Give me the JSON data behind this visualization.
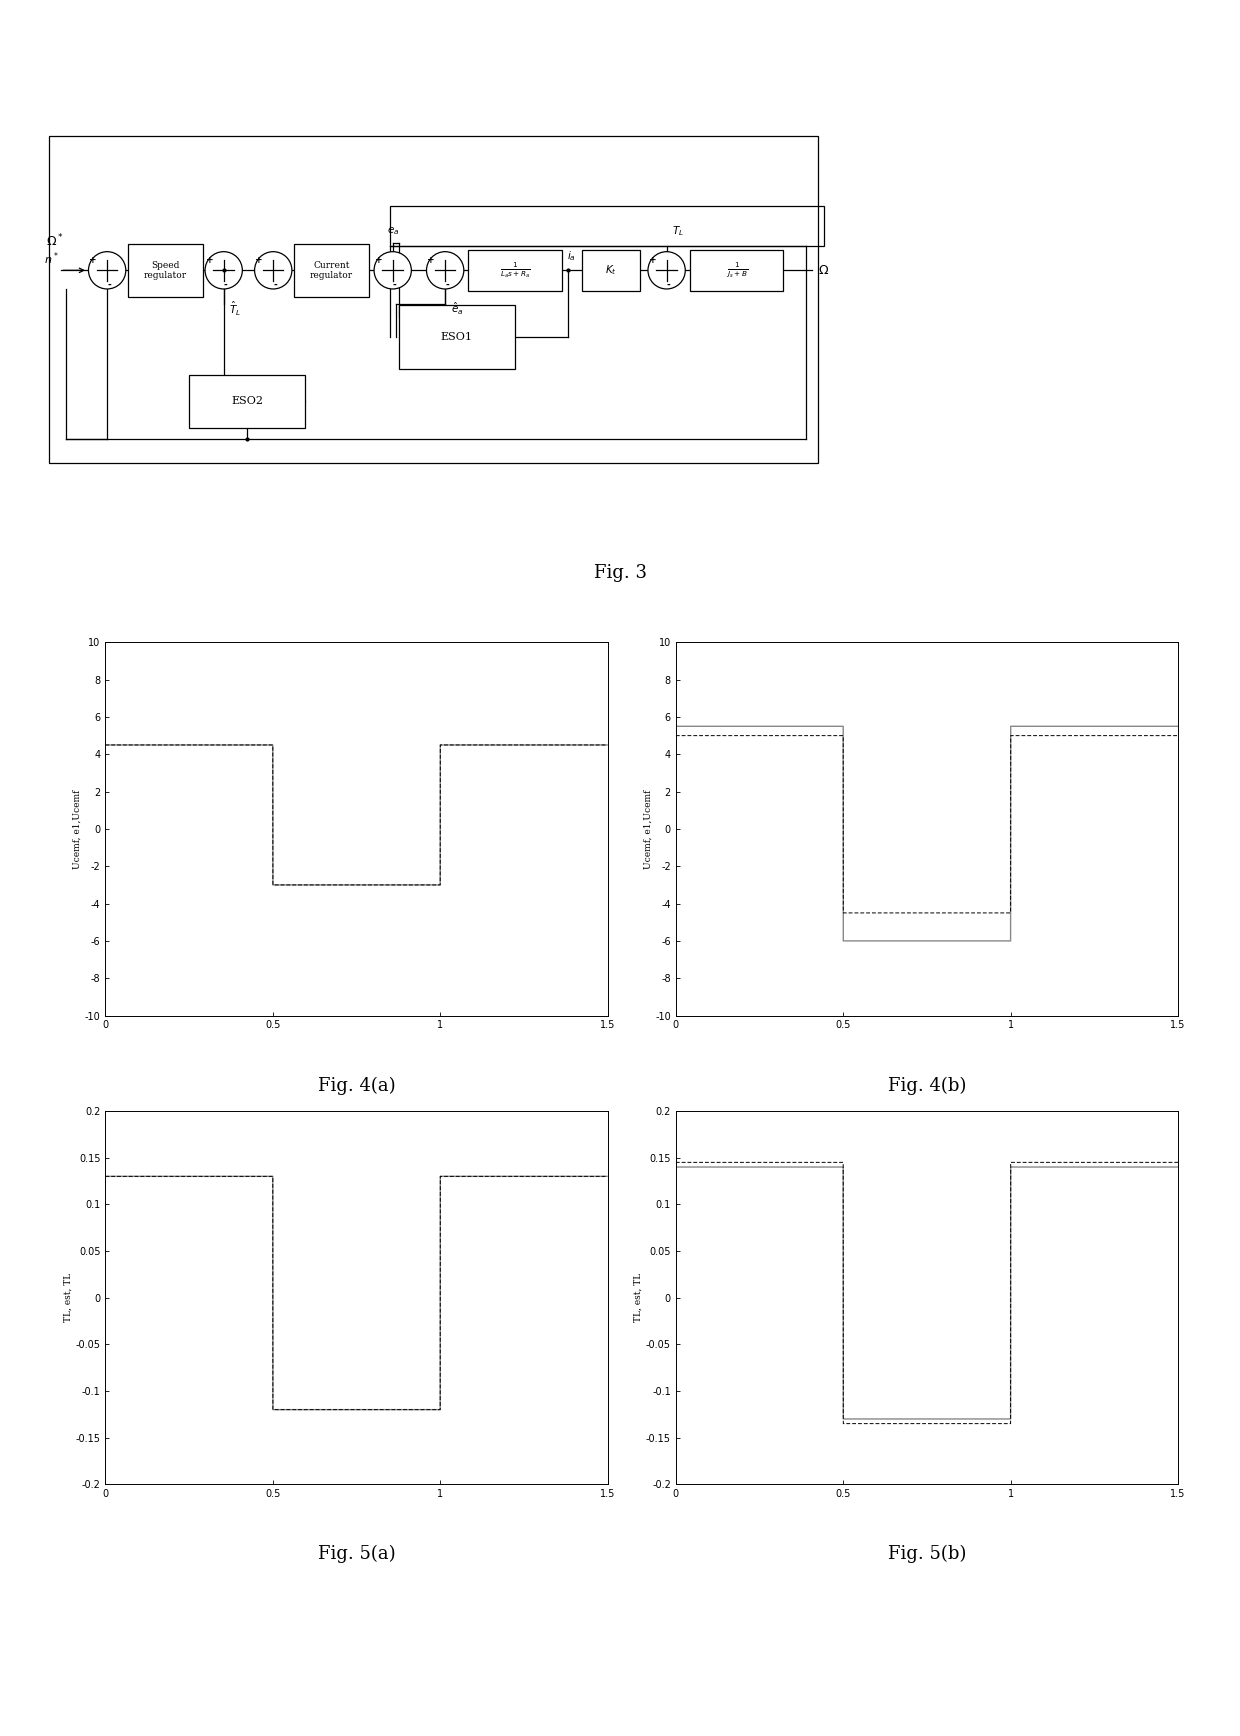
{
  "fig3_caption": "Fig. 3",
  "fig4a_caption": "Fig. 4(a)",
  "fig4b_caption": "Fig. 4(b)",
  "fig5a_caption": "Fig. 5(a)",
  "fig5b_caption": "Fig. 5(b)",
  "plot_xlim": [
    0,
    1.5
  ],
  "plot4_ylim": [
    -10,
    10
  ],
  "plot5_ylim": [
    -0.2,
    0.2
  ],
  "plot4_yticks": [
    -10,
    -8,
    -6,
    -4,
    -2,
    0,
    2,
    4,
    6,
    8,
    10
  ],
  "plot5_yticks": [
    -0.2,
    -0.15,
    -0.1,
    -0.05,
    0,
    0.05,
    0.1,
    0.15,
    0.2
  ],
  "plot_xticks": [
    0,
    0.5,
    1.0,
    1.5
  ],
  "ylabel_4a": "Ucemf, e1,Ucemf",
  "ylabel_4b": "Ucemf, e1,Ucemf",
  "ylabel_5a": "TL, est, TL",
  "ylabel_5b": "TL, est, TL",
  "line_color_gray": "#888888",
  "line_color_black": "#000000",
  "line_color_dashed": "#555555",
  "caption_fontsize": 13,
  "tick_fontsize": 7,
  "ylabel_fontsize": 6.5,
  "fig4a_high": 4.5,
  "fig4a_low": -3.0,
  "fig4b_high1": 5.5,
  "fig4b_low1": -6.0,
  "fig4b_high2": 5.0,
  "fig4b_low2": -4.5,
  "fig5a_high": 0.13,
  "fig5a_low": -0.12,
  "fig5b_high1": 0.14,
  "fig5b_low1": -0.13,
  "fig5b_high2": 0.145,
  "fig5b_low2": -0.135,
  "t_switch1": 0.5,
  "t_switch2": 1.0
}
